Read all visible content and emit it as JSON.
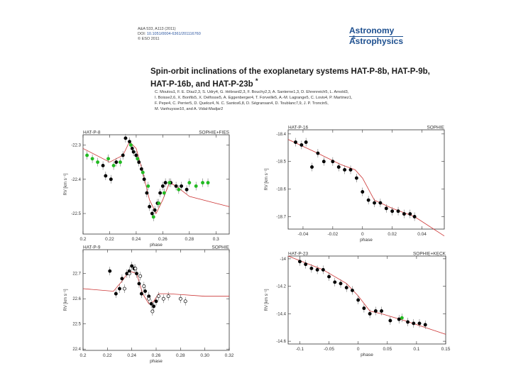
{
  "header": {
    "citation": "A&A 533, A113 (2011)",
    "doi_label": "DOI:",
    "doi": "10.1051/0004-6361/201116760",
    "copyright": "© ESO 2011"
  },
  "journal": {
    "line1": "Astronomy",
    "amp": "&",
    "line2": "Astrophysics"
  },
  "paper": {
    "title": "Spin-orbit inclinations of the exoplanetary systems HAT-P-8b, HAT-P-9b, HAT-P-16b, and HAT-P-23b",
    "title_mark": "*",
    "authors": [
      "C. Moutou1, F. E. Díaz2,3, S. Udry4, G. Hébrard2,3, F. Bouchy2,3, A. Santerne1,3, D. Ehrenreich5, L. Arnold3,",
      "I. Boisse2,6, X. Bonfils5, X. Delfosse5, A. Eggenberger4, T. Forveille5, A.-M. Lagrange5, C. Lovis4, P. Martinez1,",
      "F. Pepe4, C. Perrier5, D. Queloz4, N. C. Santos6,8, D. Ségransan4, D. Toublanc7,9, J. P. Troncin5,",
      "M. Vanhuysse10, and A. Vidal-Madjar2"
    ]
  },
  "chart_data": [
    {
      "type": "scatter",
      "title": "HAT-P-8",
      "instrument": "SOPHIE+FIES",
      "xlabel": "phase",
      "ylabel": "RV [km s⁻¹]",
      "xlim": [
        0.2,
        0.31
      ],
      "ylim": [
        -22.56,
        -22.27
      ],
      "xticks": [
        0.2,
        0.22,
        0.24,
        0.26,
        0.28,
        0.3
      ],
      "xtick_labels": [
        "0.2",
        "0.22",
        "0.24",
        "0.26",
        "0.28",
        "0.3"
      ],
      "yticks": [
        -22.3,
        -22.4,
        -22.5
      ],
      "ytick_labels": [
        "-22.3",
        "-22.4",
        "-22.5"
      ],
      "series": [
        {
          "name": "SOPHIE",
          "color": "#000000",
          "marker": "filled-circle",
          "x": [
            0.215,
            0.217,
            0.221,
            0.225,
            0.23,
            0.232,
            0.235,
            0.237,
            0.238,
            0.24,
            0.242,
            0.244,
            0.246,
            0.248,
            0.25,
            0.252,
            0.254,
            0.256,
            0.258,
            0.26,
            0.262,
            0.266,
            0.27,
            0.274,
            0.278
          ],
          "y": [
            -22.36,
            -22.39,
            -22.4,
            -22.35,
            -22.33,
            -22.28,
            -22.29,
            -22.31,
            -22.32,
            -22.33,
            -22.35,
            -22.37,
            -22.4,
            -22.44,
            -22.48,
            -22.5,
            -22.49,
            -22.47,
            -22.44,
            -22.42,
            -22.41,
            -22.41,
            -22.42,
            -22.42,
            -22.43
          ]
        },
        {
          "name": "FIES",
          "color": "#22bb22",
          "marker": "filled-circle",
          "x": [
            0.203,
            0.207,
            0.211,
            0.219,
            0.223,
            0.228,
            0.236,
            0.241,
            0.245,
            0.249,
            0.253,
            0.257,
            0.261,
            0.265,
            0.272,
            0.28,
            0.285,
            0.29,
            0.294
          ],
          "y": [
            -22.33,
            -22.34,
            -22.35,
            -22.34,
            -22.36,
            -22.35,
            -22.3,
            -22.34,
            -22.38,
            -22.42,
            -22.51,
            -22.47,
            -22.44,
            -22.41,
            -22.43,
            -22.41,
            -22.42,
            -22.41,
            -22.41
          ]
        }
      ],
      "model": {
        "x": [
          0.2,
          0.22,
          0.23,
          0.235,
          0.24,
          0.245,
          0.25,
          0.255,
          0.26,
          0.265,
          0.27,
          0.28,
          0.3,
          0.31
        ],
        "y": [
          -22.31,
          -22.35,
          -22.33,
          -22.29,
          -22.31,
          -22.38,
          -22.46,
          -22.5,
          -22.46,
          -22.41,
          -22.42,
          -22.45,
          -22.47,
          -22.48
        ]
      }
    },
    {
      "type": "scatter",
      "title": "HAT-P-16",
      "instrument": "SOPHIE",
      "xlabel": "phase",
      "ylabel": "RV [km s⁻¹]",
      "xlim": [
        -0.05,
        0.055
      ],
      "ylim": [
        -18.745,
        -18.385
      ],
      "xticks": [
        -0.04,
        -0.02,
        0,
        0.02,
        0.04
      ],
      "xtick_labels": [
        "-0.04",
        "-0.02",
        "0",
        "0.02",
        "0.04"
      ],
      "yticks": [
        -18.4,
        -18.5,
        -18.6,
        -18.7
      ],
      "ytick_labels": [
        "-18.4",
        "-18.5",
        "-18.6",
        "-18.7"
      ],
      "series": [
        {
          "name": "SOPHIE",
          "color": "#000000",
          "marker": "filled-circle",
          "x": [
            -0.045,
            -0.041,
            -0.038,
            -0.034,
            -0.03,
            -0.026,
            -0.02,
            -0.016,
            -0.012,
            -0.008,
            -0.004,
            0.0,
            0.004,
            0.008,
            0.012,
            0.016,
            0.02,
            0.024,
            0.028,
            0.032,
            0.035
          ],
          "y": [
            -18.43,
            -18.44,
            -18.43,
            -18.52,
            -18.47,
            -18.5,
            -18.5,
            -18.52,
            -18.53,
            -18.53,
            -18.56,
            -18.61,
            -18.64,
            -18.65,
            -18.65,
            -18.67,
            -18.68,
            -18.68,
            -18.69,
            -18.69,
            -18.7
          ]
        }
      ],
      "model": {
        "x": [
          -0.05,
          -0.03,
          -0.015,
          -0.005,
          0.0,
          0.008,
          0.02,
          0.035,
          0.055
        ],
        "y": [
          -18.42,
          -18.47,
          -18.51,
          -18.53,
          -18.56,
          -18.64,
          -18.67,
          -18.7,
          -18.77
        ]
      }
    },
    {
      "type": "scatter",
      "title": "HAT-P-9",
      "instrument": "SOPHIE",
      "xlabel": "phase",
      "ylabel": "RV [km s⁻¹]",
      "xlim": [
        0.2,
        0.32
      ],
      "ylim": [
        22.395,
        22.795
      ],
      "xticks": [
        0.2,
        0.22,
        0.24,
        0.26,
        0.28,
        0.3,
        0.32
      ],
      "xtick_labels": [
        "0.2",
        "0.22",
        "0.24",
        "0.26",
        "0.28",
        "0.30",
        "0.32"
      ],
      "yticks": [
        22.7,
        22.6,
        22.5,
        22.4
      ],
      "ytick_labels": [
        "22.7",
        "22.6",
        "22.5",
        "22.4"
      ],
      "series": [
        {
          "name": "SOPHIE (in transit)",
          "color": "#000000",
          "marker": "filled-circle",
          "x": [
            0.222,
            0.227,
            0.23,
            0.232,
            0.236,
            0.238,
            0.24,
            0.242,
            0.244,
            0.246,
            0.248,
            0.251,
            0.254,
            0.256,
            0.258,
            0.26
          ],
          "y": [
            22.71,
            22.62,
            22.64,
            22.68,
            22.7,
            22.71,
            22.73,
            22.72,
            22.7,
            22.66,
            22.62,
            22.63,
            22.61,
            22.58,
            22.57,
            22.59
          ]
        },
        {
          "name": "SOPHIE (out of transit)",
          "color": "#000000",
          "marker": "open-circle",
          "x": [
            0.234,
            0.238,
            0.243,
            0.247,
            0.25,
            0.254,
            0.257,
            0.262,
            0.266,
            0.27,
            0.28,
            0.284
          ],
          "y": [
            22.64,
            22.7,
            22.72,
            22.69,
            22.65,
            22.6,
            22.55,
            22.61,
            22.6,
            22.61,
            22.6,
            22.59
          ]
        }
      ],
      "model": {
        "x": [
          0.2,
          0.225,
          0.232,
          0.238,
          0.244,
          0.249,
          0.254,
          0.258,
          0.262,
          0.27,
          0.3,
          0.32
        ],
        "y": [
          22.64,
          22.63,
          22.67,
          22.71,
          22.7,
          22.62,
          22.58,
          22.59,
          22.62,
          22.62,
          22.61,
          22.61
        ]
      }
    },
    {
      "type": "scatter",
      "title": "HAT-P-23",
      "instrument": "SOPHIE+KECK",
      "xlabel": "phase",
      "ylabel": "RV [km s⁻¹]",
      "xlim": [
        -0.12,
        0.15
      ],
      "ylim": [
        -14.62,
        -13.98
      ],
      "xticks": [
        -0.1,
        -0.05,
        0,
        0.05,
        0.1,
        0.15
      ],
      "xtick_labels": [
        "-0.1",
        "-0.05",
        "0",
        "0.05",
        "0.1",
        "0.15"
      ],
      "yticks": [
        -14,
        -14.2,
        -14.4,
        -14.6
      ],
      "ytick_labels": [
        "-14",
        "-14.2",
        "-14.4",
        "-14.6"
      ],
      "series": [
        {
          "name": "SOPHIE",
          "color": "#000000",
          "marker": "filled-circle",
          "x": [
            -0.1,
            -0.09,
            -0.08,
            -0.07,
            -0.06,
            -0.05,
            -0.04,
            -0.03,
            -0.02,
            -0.01,
            0.0,
            0.01,
            0.02,
            0.03,
            0.04,
            0.055,
            0.07,
            0.085,
            0.095,
            0.105,
            0.115
          ],
          "y": [
            -14.02,
            -14.04,
            -14.07,
            -14.08,
            -14.08,
            -14.13,
            -14.17,
            -14.18,
            -14.21,
            -14.23,
            -14.3,
            -14.36,
            -14.4,
            -14.38,
            -14.38,
            -14.45,
            -14.44,
            -14.46,
            -14.47,
            -14.47,
            -14.48
          ]
        },
        {
          "name": "KECK",
          "color": "#22bb22",
          "marker": "filled-circle",
          "x": [
            0.075
          ],
          "y": [
            -14.43
          ]
        }
      ],
      "model": {
        "x": [
          -0.12,
          -0.06,
          -0.02,
          0.0,
          0.02,
          0.04,
          0.08,
          0.15
        ],
        "y": [
          -13.98,
          -14.08,
          -14.18,
          -14.27,
          -14.38,
          -14.4,
          -14.45,
          -14.55
        ]
      }
    }
  ]
}
